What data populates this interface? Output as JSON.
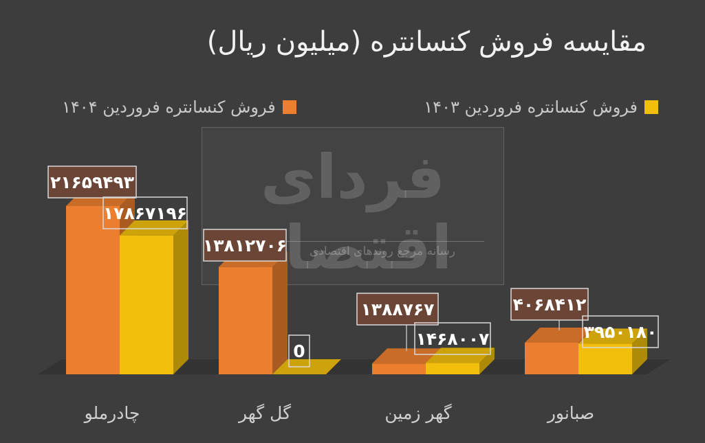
{
  "title": "مقایسه فروش کنسانتره (میلیون ریال)",
  "legend": {
    "item_1403": "فروش کنسانتره فروردین ۱۴۰۳",
    "item_1404": "فروش کنسانتره فروردین ۱۴۰۴"
  },
  "watermark": {
    "brand": "فردای اقتصاد",
    "tagline": "رسانه مرجع روندهای اقتصادی"
  },
  "colors": {
    "orange": "#ec7f2f",
    "gold": "#f2bf0c",
    "label_bg": "#6b4636",
    "background": "#3d3d3d"
  },
  "chart_data": {
    "type": "bar",
    "title": "مقایسه فروش کنسانتره (میلیون ریال)",
    "categories": [
      "چادرملو",
      "گل گهر",
      "گهر زمین",
      "صبانور"
    ],
    "series": [
      {
        "name": "فروش کنسانتره فروردین ۱۴۰۴",
        "values": [
          21659493,
          13812706,
          1388767,
          4068412
        ],
        "labels": [
          "۲۱۶۵۹۴۹۳",
          "۱۳۸۱۲۷۰۶",
          "۱۳۸۸۷۶۷",
          "۴۰۶۸۴۱۲"
        ],
        "color": "#ec7f2f"
      },
      {
        "name": "فروش کنسانتره فروردین ۱۴۰۳",
        "values": [
          17867196,
          0,
          1468007,
          3950180
        ],
        "labels": [
          "۱۷۸۶۷۱۹۶",
          "0",
          "۱۴۶۸۰۰۷",
          "۳۹۵۰۱۸۰"
        ],
        "color": "#f2bf0c"
      }
    ],
    "legend_position": "top",
    "grid": false
  }
}
